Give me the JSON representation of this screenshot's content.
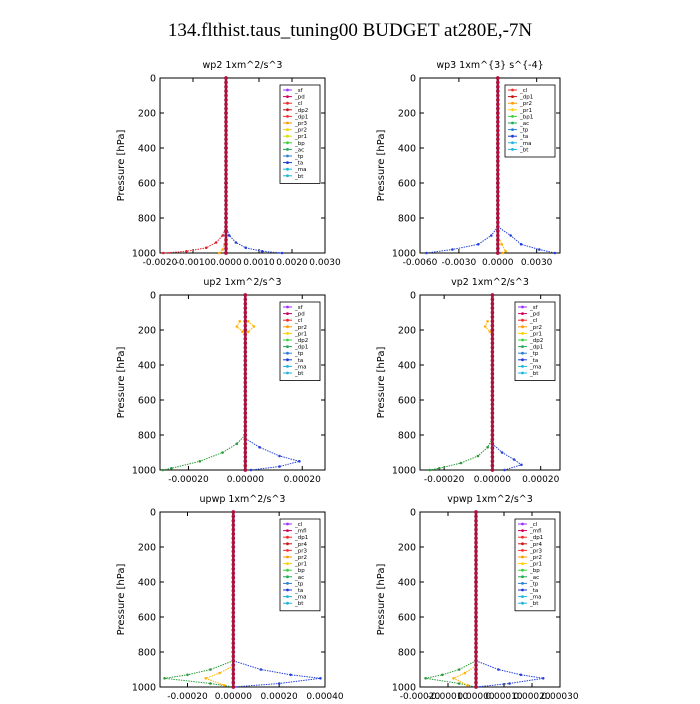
{
  "figure": {
    "title": "134.flthist.taus_tuning00  BUDGET at280E,-7N"
  },
  "chart_data": [
    {
      "type": "line",
      "title": "wp2   1xm^2/s^3",
      "ylabel": "Pressure  [hPa]",
      "xlim": [
        -0.002,
        0.003
      ],
      "ylim": [
        1000,
        0
      ],
      "xticks": [
        -0.002,
        -0.001,
        0.0,
        0.001,
        0.002,
        0.003
      ],
      "xtick_labels": [
        "-0.0020",
        "-0.0010",
        "0.0000",
        "0.0010",
        "0.0020",
        "0.0030"
      ],
      "yticks": [
        0,
        200,
        400,
        600,
        800,
        1000
      ],
      "ytick_labels": [
        "0",
        "200",
        "400",
        "600",
        "800",
        "1000"
      ],
      "legend": [
        "_sf",
        "_pd",
        "_cl",
        "_dp2",
        "_dp1",
        "_pr3",
        "_pr2",
        "_pr1",
        "_bp",
        "_ac",
        "_tp",
        "_ta",
        "_ma",
        "_bt"
      ],
      "legend_colors": [
        "#9b30ff",
        "#d1005e",
        "#ee2a2a",
        "#c81414",
        "#ff3030",
        "#ff9a00",
        "#ffcf00",
        "#d8e000",
        "#3ecf3e",
        "#22aa55",
        "#2a7fd4",
        "#1e3ad2",
        "#1eb4dc",
        "#1eb4dc"
      ],
      "series": [
        {
          "pressure": [
            850,
            900,
            940,
            970,
            990,
            1000
          ],
          "values": [
            0,
            -0.0001,
            -0.0003,
            -0.0006,
            -0.0012,
            -0.0019
          ]
        },
        {
          "pressure": [
            850,
            900,
            940,
            970,
            990,
            1000
          ],
          "values": [
            0,
            0.0001,
            0.0003,
            0.0006,
            0.0011,
            0.0017
          ]
        },
        {
          "pressure": [
            900,
            950,
            980,
            1000
          ],
          "values": [
            0,
            -5e-05,
            -0.0001,
            -0.0002
          ]
        },
        {
          "pressure": [
            0,
            200,
            400,
            600,
            800,
            1000
          ],
          "values": [
            0,
            0,
            0,
            0,
            0,
            0
          ]
        }
      ]
    },
    {
      "type": "line",
      "title": "wp3   1xm^{3} s^{-4}",
      "ylabel": "Pressure  [hPa]",
      "xlim": [
        -0.006,
        0.0048
      ],
      "ylim": [
        1000,
        0
      ],
      "xticks": [
        -0.006,
        -0.003,
        0.0,
        0.003
      ],
      "xtick_labels": [
        "-0.0060",
        "-0.0030",
        "0.0000",
        "0.0030"
      ],
      "yticks": [
        0,
        200,
        400,
        600,
        800,
        1000
      ],
      "ytick_labels": [
        "0",
        "200",
        "400",
        "600",
        "800",
        "1000"
      ],
      "legend": [
        "_cl",
        "_dp1",
        "_pr2",
        "_pr1",
        "_bp1",
        "_ac",
        "_tp",
        "_ta",
        "_ma",
        "_bt"
      ],
      "legend_colors": [
        "#ee2a2a",
        "#c81414",
        "#ff9a00",
        "#ffcf00",
        "#3ecf3e",
        "#22aa55",
        "#2a7fd4",
        "#1e3ad2",
        "#1eb4dc",
        "#1eb4dc"
      ],
      "series": [
        {
          "pressure": [
            850,
            900,
            950,
            980,
            1000
          ],
          "values": [
            0,
            -0.0005,
            -0.0015,
            -0.0035,
            -0.0055
          ]
        },
        {
          "pressure": [
            850,
            900,
            950,
            980,
            1000
          ],
          "values": [
            0,
            0.001,
            0.0018,
            0.0032,
            0.0044
          ]
        },
        {
          "pressure": [
            900,
            950,
            990,
            1000
          ],
          "values": [
            0,
            0.0003,
            0.0006,
            0.0004
          ]
        },
        {
          "pressure": [
            0,
            200,
            400,
            600,
            800,
            1000
          ],
          "values": [
            0,
            0,
            0,
            0,
            0,
            0
          ]
        }
      ]
    },
    {
      "type": "line",
      "title": "up2   1xm^2/s^3",
      "ylabel": "Pressure  [hPa]",
      "xlim": [
        -0.0003,
        0.00028
      ],
      "ylim": [
        1000,
        0
      ],
      "xticks": [
        -0.0002,
        0.0,
        0.0002
      ],
      "xtick_labels": [
        "-0.00020",
        "0.00000",
        "0.00020"
      ],
      "yticks": [
        0,
        200,
        400,
        600,
        800,
        1000
      ],
      "ytick_labels": [
        "0",
        "200",
        "400",
        "600",
        "800",
        "1000"
      ],
      "legend": [
        "_sf",
        "_pd",
        "_cl",
        "_pr2",
        "_pr1",
        "_dp2",
        "_dp1",
        "_tp",
        "_ta",
        "_ma",
        "_bt"
      ],
      "legend_colors": [
        "#9b30ff",
        "#d1005e",
        "#ee2a2a",
        "#ff9a00",
        "#ffcf00",
        "#3ecf3e",
        "#22aa55",
        "#2a7fd4",
        "#1e3ad2",
        "#1eb4dc",
        "#1eb4dc"
      ],
      "series": [
        {
          "pressure": [
            800,
            850,
            900,
            950,
            990,
            1000
          ],
          "values": [
            0,
            -3e-05,
            -8e-05,
            -0.00016,
            -0.00026,
            -0.00029
          ]
        },
        {
          "pressure": [
            820,
            870,
            920,
            950,
            980,
            1000
          ],
          "values": [
            0,
            5e-05,
            0.00012,
            0.00019,
            0.00012,
            2e-05
          ]
        },
        {
          "pressure": [
            150,
            180,
            210
          ],
          "values": [
            -2e-05,
            -3e-05,
            -1e-05
          ]
        },
        {
          "pressure": [
            150,
            180,
            210
          ],
          "values": [
            1e-05,
            3e-05,
            1e-05
          ]
        },
        {
          "pressure": [
            0,
            200,
            400,
            600,
            800,
            1000
          ],
          "values": [
            0,
            0,
            0,
            0,
            0,
            0
          ]
        }
      ]
    },
    {
      "type": "line",
      "title": "vp2   1xm^2/s^3",
      "ylabel": "Pressure  [hPa]",
      "xlim": [
        -0.0003,
        0.00028
      ],
      "ylim": [
        1000,
        0
      ],
      "xticks": [
        -0.0002,
        0.0,
        0.0002
      ],
      "xtick_labels": [
        "-0.00020",
        "0.00000",
        "0.00020"
      ],
      "yticks": [
        0,
        200,
        400,
        600,
        800,
        1000
      ],
      "ytick_labels": [
        "0",
        "200",
        "400",
        "600",
        "800",
        "1000"
      ],
      "legend": [
        "_sf",
        "_pd",
        "_cl",
        "_pr2",
        "_pr1",
        "_dp2",
        "_dp1",
        "_tp",
        "_ta",
        "_ma",
        "_bt"
      ],
      "legend_colors": [
        "#9b30ff",
        "#d1005e",
        "#ee2a2a",
        "#ff9a00",
        "#ffcf00",
        "#3ecf3e",
        "#22aa55",
        "#2a7fd4",
        "#1e3ad2",
        "#1eb4dc",
        "#1eb4dc"
      ],
      "series": [
        {
          "pressure": [
            820,
            870,
            920,
            960,
            990,
            1000
          ],
          "values": [
            0,
            -2e-05,
            -6e-05,
            -0.00013,
            -0.00022,
            -0.00026
          ]
        },
        {
          "pressure": [
            850,
            900,
            940,
            970,
            1000
          ],
          "values": [
            0,
            4e-05,
            9e-05,
            0.00012,
            5e-05
          ]
        },
        {
          "pressure": [
            150,
            180,
            210
          ],
          "values": [
            -2e-05,
            -3e-05,
            -1e-05
          ]
        },
        {
          "pressure": [
            0,
            200,
            400,
            600,
            800,
            1000
          ],
          "values": [
            0,
            0,
            0,
            0,
            0,
            0
          ]
        }
      ]
    },
    {
      "type": "line",
      "title": "upwp   1xm^2/s^3",
      "ylabel": "Pressure  [hPa]",
      "xlim": [
        -0.00032,
        0.0004
      ],
      "ylim": [
        1000,
        0
      ],
      "xticks": [
        -0.0002,
        0.0,
        0.0002,
        0.0004
      ],
      "xtick_labels": [
        "-0.00020",
        "0.00000",
        "0.00020",
        "0.00040"
      ],
      "yticks": [
        0,
        200,
        400,
        600,
        800,
        1000
      ],
      "ytick_labels": [
        "0",
        "200",
        "400",
        "600",
        "800",
        "1000"
      ],
      "legend": [
        "_cl",
        "_mfl",
        "_dp1",
        "_pr4",
        "_pr3",
        "_pr2",
        "_pr1",
        "_bp",
        "_ac",
        "_tp",
        "_ta",
        "_ma",
        "_bt"
      ],
      "legend_colors": [
        "#9b30ff",
        "#d1005e",
        "#ee2a2a",
        "#c81414",
        "#ff3030",
        "#ff9a00",
        "#ffcf00",
        "#3ecf3e",
        "#22aa55",
        "#2a7fd4",
        "#1e3ad2",
        "#1eb4dc",
        "#1eb4dc"
      ],
      "series": [
        {
          "pressure": [
            850,
            900,
            930,
            950,
            980,
            1000
          ],
          "values": [
            0,
            -0.0001,
            -0.0002,
            -0.0003,
            -0.0001,
            0
          ]
        },
        {
          "pressure": [
            850,
            900,
            930,
            950,
            980,
            1000
          ],
          "values": [
            0,
            0.00012,
            0.00025,
            0.00038,
            0.0002,
            0
          ]
        },
        {
          "pressure": [
            880,
            920,
            950,
            990
          ],
          "values": [
            0,
            -6e-05,
            -0.00012,
            -4e-05
          ]
        },
        {
          "pressure": [
            0,
            200,
            400,
            600,
            800,
            1000
          ],
          "values": [
            0,
            0,
            0,
            0,
            0,
            0
          ]
        }
      ]
    },
    {
      "type": "line",
      "title": "vpwp   1xm^2/s^3",
      "ylabel": "Pressure  [hPa]",
      "xlim": [
        -0.0002,
        0.0003
      ],
      "ylim": [
        1000,
        0
      ],
      "xticks": [
        -0.0002,
        -0.0001,
        0.0,
        0.0001,
        0.0002,
        0.0003
      ],
      "xtick_labels": [
        "-0.00020",
        "-0.00010",
        "0.00000",
        "0.00010",
        "0.00020",
        "0.00030"
      ],
      "yticks": [
        0,
        200,
        400,
        600,
        800,
        1000
      ],
      "ytick_labels": [
        "0",
        "200",
        "400",
        "600",
        "800",
        "1000"
      ],
      "legend": [
        "_cl",
        "_mfl",
        "_dp1",
        "_pr4",
        "_pr3",
        "_pr2",
        "_pr1",
        "_bp",
        "_ac",
        "_tp",
        "_ta",
        "_ma",
        "_bt"
      ],
      "legend_colors": [
        "#9b30ff",
        "#d1005e",
        "#ee2a2a",
        "#c81414",
        "#ff3030",
        "#ff9a00",
        "#ffcf00",
        "#3ecf3e",
        "#22aa55",
        "#2a7fd4",
        "#1e3ad2",
        "#1eb4dc",
        "#1eb4dc"
      ],
      "series": [
        {
          "pressure": [
            850,
            900,
            930,
            950,
            980,
            1000
          ],
          "values": [
            0,
            -6e-05,
            -0.00012,
            -0.00018,
            -6e-05,
            0
          ]
        },
        {
          "pressure": [
            850,
            900,
            930,
            950,
            980,
            1000
          ],
          "values": [
            0,
            8e-05,
            0.00016,
            0.00024,
            0.00012,
            0
          ]
        },
        {
          "pressure": [
            880,
            920,
            950,
            990
          ],
          "values": [
            0,
            -4e-05,
            -8e-05,
            -3e-05
          ]
        },
        {
          "pressure": [
            0,
            200,
            400,
            600,
            800,
            1000
          ],
          "values": [
            0,
            0,
            0,
            0,
            0,
            0
          ]
        }
      ]
    }
  ]
}
